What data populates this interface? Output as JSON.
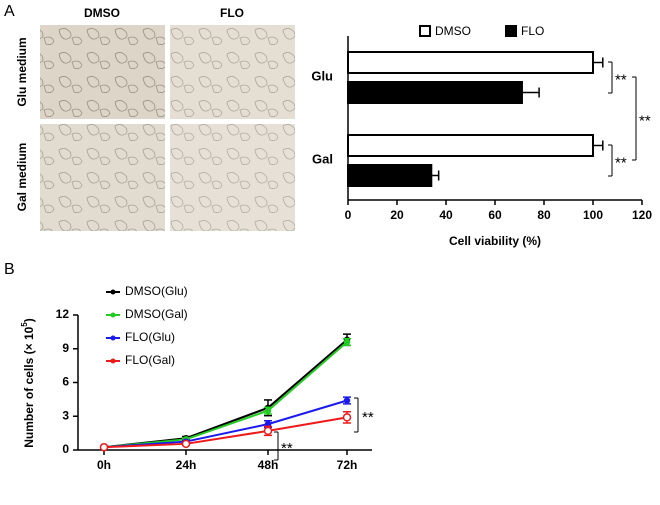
{
  "panels": {
    "a": "A",
    "b": "B",
    "col_labels": [
      "DMSO",
      "FLO"
    ],
    "row_labels": [
      "Glu medium",
      "Gal medium"
    ]
  },
  "chart_data": [
    {
      "type": "hbar",
      "categories": [
        "Glu",
        "Gal"
      ],
      "xlabel": "Cell viability (%)",
      "xlim": [
        0,
        120
      ],
      "xticks": [
        0,
        20,
        40,
        60,
        80,
        100,
        120
      ],
      "series": [
        {
          "name": "DMSO",
          "color": "#ffffff",
          "values": [
            100,
            100
          ],
          "errors": [
            4,
            4
          ]
        },
        {
          "name": "FLO",
          "color": "#000000",
          "values": [
            71,
            34
          ],
          "errors": [
            7,
            3
          ]
        }
      ],
      "annotations": [
        "**",
        "**",
        "**"
      ]
    },
    {
      "type": "line",
      "categories": [
        "0h",
        "24h",
        "48h",
        "72h"
      ],
      "ylabel": [
        "Number of cells (× 10",
        "5",
        ")"
      ],
      "ylim": [
        0,
        12
      ],
      "yticks": [
        0,
        3,
        6,
        9,
        12
      ],
      "series": [
        {
          "name": "DMSO(Glu)",
          "color": "#000000",
          "values": [
            0.25,
            1.05,
            3.75,
            9.8
          ],
          "errors": [
            0.05,
            0.15,
            0.7,
            0.5
          ]
        },
        {
          "name": "DMSO(Gal)",
          "color": "#22cc22",
          "values": [
            0.25,
            0.95,
            3.5,
            9.6
          ],
          "errors": [
            0.05,
            0.1,
            0.3,
            0.3
          ]
        },
        {
          "name": "FLO(Glu)",
          "color": "#1a1aee",
          "values": [
            0.25,
            0.75,
            2.3,
            4.4
          ],
          "errors": [
            0.05,
            0.1,
            0.3,
            0.3
          ]
        },
        {
          "name": "FLO(Gal)",
          "color": "#ee1a1a",
          "values": [
            0.25,
            0.55,
            1.7,
            2.9
          ],
          "errors": [
            0.05,
            0.1,
            0.4,
            0.5
          ]
        }
      ],
      "annotations": [
        "**",
        "**"
      ]
    }
  ]
}
